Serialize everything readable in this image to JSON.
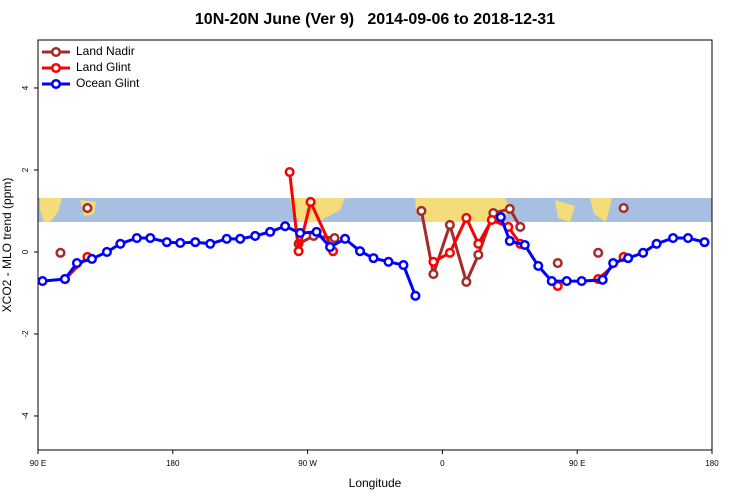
{
  "chart_data": {
    "type": "line",
    "title": "10N-20N June (Ver 9)   2014-09-06 to 2018-12-31",
    "x_label": "Longitude",
    "y_label": "XCO2 - MLO trend (ppm)",
    "xlim": [
      90,
      540
    ],
    "xticks": [
      {
        "value": 90,
        "label": "90 E"
      },
      {
        "value": 180,
        "label": "180"
      },
      {
        "value": 270,
        "label": "90 W"
      },
      {
        "value": 360,
        "label": "0"
      },
      {
        "value": 450,
        "label": "90 E"
      },
      {
        "value": 540,
        "label": "180"
      }
    ],
    "ylim": [
      -4.83,
      5.17
    ],
    "yticks": [
      -4,
      -2,
      0,
      2,
      4
    ],
    "legend": "top-left",
    "series": [
      {
        "name": "Land Nadir",
        "color": "#a52a2a",
        "x": [
          105,
          114,
          123,
          190,
          264,
          274,
          288,
          320,
          346,
          354,
          365,
          376,
          384,
          394,
          405,
          412,
          425,
          437,
          450,
          464,
          472,
          481
        ],
        "values": [
          -0.02,
          null,
          1.07,
          null,
          0.2,
          0.39,
          0.34,
          null,
          1.0,
          -0.54,
          0.66,
          -0.73,
          -0.07,
          0.95,
          1.05,
          0.61,
          null,
          -0.27,
          null,
          -0.02,
          null,
          1.07
        ]
      },
      {
        "name": "Land Glint",
        "color": "#ff0000",
        "x": [
          108,
          123,
          190,
          258,
          264,
          272,
          287,
          320,
          354,
          365,
          376,
          384,
          393,
          404,
          412,
          425,
          437,
          450,
          464,
          481
        ],
        "values": [
          -0.66,
          -0.12,
          null,
          1.95,
          0.02,
          1.22,
          0.02,
          null,
          -0.24,
          -0.02,
          0.83,
          0.2,
          0.78,
          0.61,
          0.2,
          null,
          -0.83,
          null,
          -0.66,
          -0.12
        ]
      },
      {
        "name": "Ocean Glint",
        "color": "#0000ff",
        "x": [
          93,
          108,
          116,
          126,
          136,
          145,
          156,
          165,
          176,
          185,
          195,
          205,
          216,
          225,
          235,
          245,
          255,
          265,
          276,
          285,
          295,
          305,
          314,
          324,
          334,
          342,
          370,
          399,
          405,
          415,
          424,
          433,
          443,
          453,
          467,
          474,
          484,
          494,
          503,
          514,
          524,
          535
        ],
        "values": [
          -0.71,
          -0.66,
          -0.27,
          -0.17,
          0,
          0.2,
          0.34,
          0.34,
          0.24,
          0.22,
          0.24,
          0.2,
          0.32,
          0.32,
          0.39,
          0.49,
          0.63,
          0.46,
          0.49,
          0.12,
          0.32,
          0.02,
          -0.15,
          -0.24,
          -0.32,
          -1.07,
          null,
          0.85,
          0.27,
          0.17,
          -0.34,
          -0.71,
          -0.71,
          -0.71,
          -0.68,
          -0.27,
          -0.15,
          -0.02,
          0.2,
          0.34,
          0.34,
          0.24
        ]
      }
    ]
  }
}
